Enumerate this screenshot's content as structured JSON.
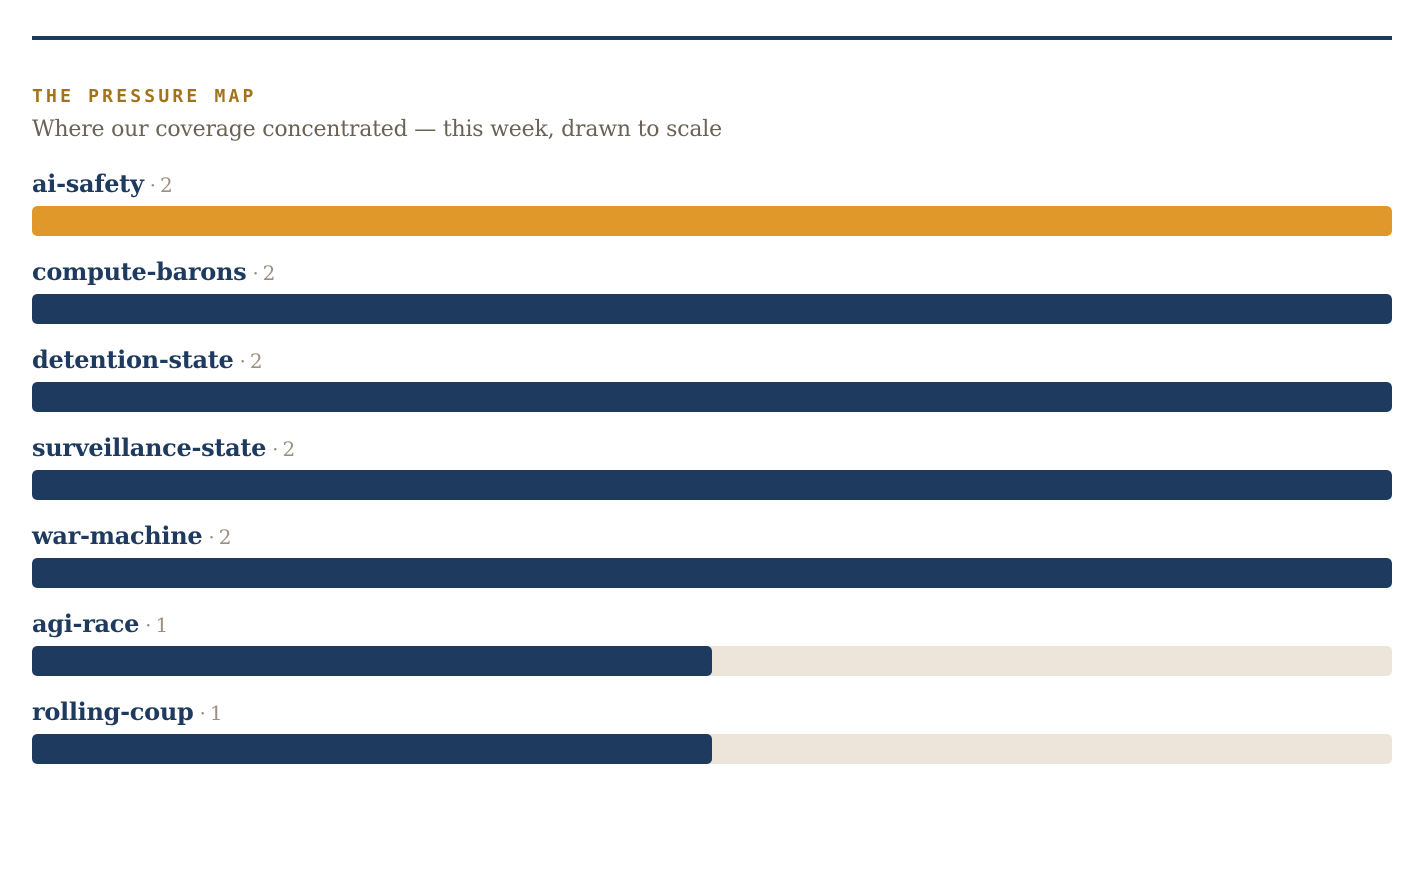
{
  "header": {
    "kicker": "THE PRESSURE MAP",
    "subtitle": "Where our coverage concentrated — this week, drawn to scale"
  },
  "colors": {
    "highlight": "#e0982b",
    "bar": "#1e3a5f",
    "track": "#ede5d9",
    "rule": "#1e3a5f"
  },
  "chart_data": {
    "type": "bar",
    "orientation": "horizontal",
    "title": "THE PRESSURE MAP",
    "subtitle": "Where our coverage concentrated — this week, drawn to scale",
    "categories": [
      "ai-safety",
      "compute-barons",
      "detention-state",
      "surveillance-state",
      "war-machine",
      "agi-race",
      "rolling-coup"
    ],
    "values": [
      2,
      2,
      2,
      2,
      2,
      1,
      1
    ],
    "xlim": [
      0,
      2
    ],
    "highlighted_category": "ai-safety",
    "separator": "·",
    "grid": false,
    "legend": "none"
  }
}
